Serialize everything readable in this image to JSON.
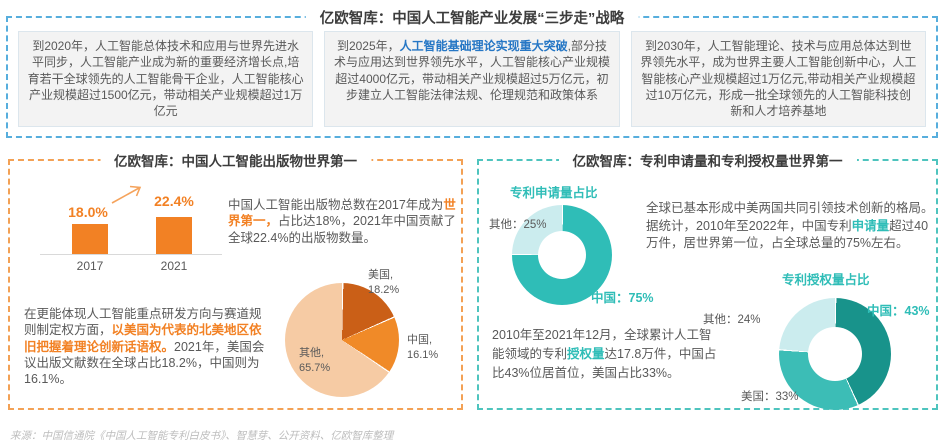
{
  "colors": {
    "blue_dash": "#57AEDD",
    "blue_highlight": "#2677C5",
    "orange": "#F28124",
    "orange_dark": "#CA5F17",
    "orange_light": "#F6CBA4",
    "teal": "#2FBDB7",
    "teal_dark": "#18938B",
    "teal_light": "#CBECEE",
    "body_text": "#595959"
  },
  "strategy": {
    "title": "亿欧智库：中国人工智能产业发展“三步走”战略",
    "boxes": [
      {
        "pre": "到2020年，人工智能总体技术和应用与世界先进水平同步，人工智能产业成为新的重要经济增长点,培育若干全球领先的人工智能骨干企业，人工智能核心产业规模超过1500亿元，带动相关产业规模超过1万亿元",
        "highlight": "",
        "post": ""
      },
      {
        "pre": "到2025年，",
        "highlight": "人工智能基础理论实现重大突破",
        "post": ",部分技术与应用达到世界领先水平，人工智能核心产业规模超过4000亿元，带动相关产业规模超过5万亿元，初步建立人工智能法律法规、伦理规范和政策体系"
      },
      {
        "pre": "到2030年，人工智能理论、技术与应用总体达到世界领先水平，成为世界主要人工智能创新中心，人工智能核心产业规模超过1万亿元,带动相关产业规模超过10万亿元，形成一批全球领先的人工智能科技创新和人才培养基地",
        "highlight": "",
        "post": ""
      }
    ]
  },
  "publications": {
    "title": "亿欧智库：中国人工智能出版物世界第一",
    "para1": {
      "pre": "中国人工智能出版物总数在2017年成为",
      "highlight": "世界第一，",
      "post": "占比达18%，2021年中国贡献了全球22.4%的出版物数量。"
    },
    "para2": {
      "pre": "在更能体现人工智能重点研发方向与赛道规则制定权方面，",
      "highlight": "以美国为代表的北美地区依旧把握着理论创新话语权。",
      "post": "2021年，美国会议出版文献数在全球占比18.2%，中国则为16.1%。"
    }
  },
  "patents": {
    "title": "亿欧智库：专利申请量和专利授权量世界第一",
    "para1": {
      "pre": "全球已基本形成中美两国共同引领技术创新的格局。据统计，2010年至2022年，中国专利",
      "highlight": "申请量",
      "post": "超过40万件，居世界第一位，占全球总量的75%左右。"
    },
    "para2": {
      "pre": "2010年至2021年12月，全球累计人工智能领域的专利",
      "highlight": "授权量",
      "post": "达17.8万件，中国占比43%位居首位，美国占比33%。"
    }
  },
  "source_note": "来源：中国信通院《中国人工智能专利白皮书》、智慧芽、公开资料、亿欧智库整理",
  "chart_data": [
    {
      "type": "bar",
      "categories": [
        "2017",
        "2021"
      ],
      "values": [
        18.0,
        22.4
      ],
      "value_labels": [
        "18.0%",
        "22.4%"
      ],
      "bar_color": "#F28124",
      "annotation": "up-arrow",
      "ylim": [
        0,
        25
      ],
      "grid": false
    },
    {
      "type": "pie",
      "labels": [
        "美国",
        "中国",
        "其他"
      ],
      "label_display": [
        "美国,",
        "中国,",
        "其他,"
      ],
      "values": [
        18.2,
        16.1,
        65.7
      ],
      "value_labels": [
        "18.2%",
        "16.1%",
        "65.7%"
      ],
      "colors": [
        "#CA5F17",
        "#F08A28",
        "#F6CBA4"
      ],
      "start_angle_deg": 0,
      "direction": "clockwise"
    },
    {
      "type": "pie",
      "subtype": "donut",
      "title": "专利申请量占比",
      "labels": [
        "中国",
        "其他"
      ],
      "values": [
        75,
        25
      ],
      "legend_display": [
        "中国：75%",
        "其他：25%"
      ],
      "colors": [
        "#2FBDB7",
        "#CBECEE"
      ],
      "start_angle_deg": 0,
      "direction": "clockwise"
    },
    {
      "type": "pie",
      "subtype": "donut",
      "title": "专利授权量占比",
      "labels": [
        "中国",
        "美国",
        "其他"
      ],
      "values": [
        43,
        33,
        24
      ],
      "legend_display": [
        "中国：43%",
        "美国：33%",
        "其他：24%"
      ],
      "colors": [
        "#18938B",
        "#3CBDB6",
        "#CBECEE"
      ],
      "start_angle_deg": 0,
      "direction": "clockwise"
    }
  ]
}
